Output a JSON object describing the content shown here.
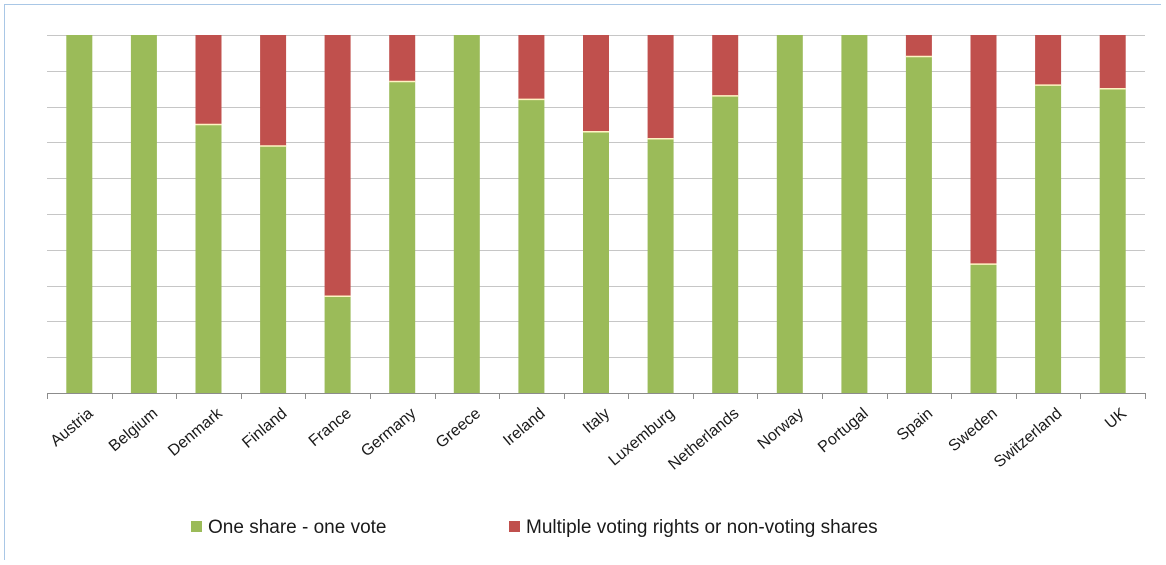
{
  "chart_data": {
    "type": "bar",
    "stacked": true,
    "percent_stacked": true,
    "categories": [
      "Austria",
      "Belgium",
      "Denmark",
      "Finland",
      "France",
      "Germany",
      "Greece",
      "Ireland",
      "Italy",
      "Luxemburg",
      "Netherlands",
      "Norway",
      "Portugal",
      "Spain",
      "Sweden",
      "Switzerland",
      "UK"
    ],
    "series": [
      {
        "name": "One share - one vote",
        "color": "#9bbb59",
        "values": [
          100,
          100,
          75,
          69,
          27,
          87,
          100,
          82,
          73,
          71,
          83,
          100,
          100,
          94,
          36,
          86,
          85
        ]
      },
      {
        "name": "Multiple voting rights or non-voting shares",
        "color": "#c0504d",
        "values": [
          0,
          0,
          25,
          31,
          73,
          13,
          0,
          18,
          27,
          29,
          17,
          0,
          0,
          6,
          64,
          14,
          15
        ]
      }
    ],
    "ylim": [
      0,
      100
    ],
    "y_gridlines": 10,
    "y_tick_labels_shown": false,
    "grid": true,
    "legend_position": "bottom",
    "title": "",
    "xlabel": "",
    "ylabel": ""
  }
}
